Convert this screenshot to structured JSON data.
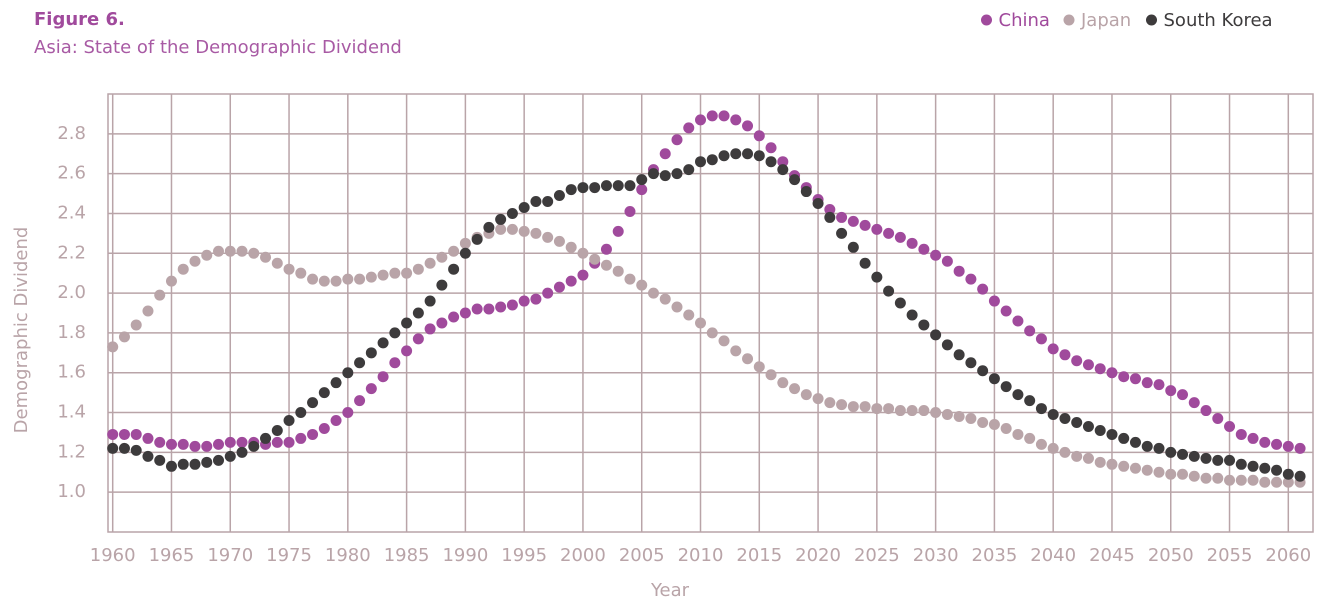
{
  "chart_data": {
    "type": "scatter",
    "title": "Figure 6.",
    "subtitle": "Asia: State of the Demographic Dividend",
    "x_label": "Year",
    "y_label": "Demographic Dividend",
    "x": [
      1960,
      1961,
      1962,
      1963,
      1964,
      1965,
      1966,
      1967,
      1968,
      1969,
      1970,
      1971,
      1972,
      1973,
      1974,
      1975,
      1976,
      1977,
      1978,
      1979,
      1980,
      1981,
      1982,
      1983,
      1984,
      1985,
      1986,
      1987,
      1988,
      1989,
      1990,
      1991,
      1992,
      1993,
      1994,
      1995,
      1996,
      1997,
      1998,
      1999,
      2000,
      2001,
      2002,
      2003,
      2004,
      2005,
      2006,
      2007,
      2008,
      2009,
      2010,
      2011,
      2012,
      2013,
      2014,
      2015,
      2016,
      2017,
      2018,
      2019,
      2020,
      2021,
      2022,
      2023,
      2024,
      2025,
      2026,
      2027,
      2028,
      2029,
      2030,
      2031,
      2032,
      2033,
      2034,
      2035,
      2036,
      2037,
      2038,
      2039,
      2040,
      2041,
      2042,
      2043,
      2044,
      2045,
      2046,
      2047,
      2048,
      2049,
      2050,
      2051,
      2052,
      2053,
      2054,
      2055,
      2056,
      2057,
      2058,
      2059,
      2060,
      2061
    ],
    "series": [
      {
        "name": "China",
        "color": "#a04a9c",
        "values": [
          1.29,
          1.29,
          1.29,
          1.27,
          1.25,
          1.24,
          1.24,
          1.23,
          1.23,
          1.24,
          1.25,
          1.25,
          1.25,
          1.24,
          1.25,
          1.25,
          1.27,
          1.29,
          1.32,
          1.36,
          1.4,
          1.46,
          1.52,
          1.58,
          1.65,
          1.71,
          1.77,
          1.82,
          1.85,
          1.88,
          1.9,
          1.92,
          1.92,
          1.93,
          1.94,
          1.96,
          1.97,
          2.0,
          2.03,
          2.06,
          2.09,
          2.15,
          2.22,
          2.31,
          2.41,
          2.52,
          2.62,
          2.7,
          2.77,
          2.83,
          2.87,
          2.89,
          2.89,
          2.87,
          2.84,
          2.79,
          2.73,
          2.66,
          2.59,
          2.53,
          2.47,
          2.42,
          2.38,
          2.36,
          2.34,
          2.32,
          2.3,
          2.28,
          2.25,
          2.22,
          2.19,
          2.16,
          2.11,
          2.07,
          2.02,
          1.96,
          1.91,
          1.86,
          1.81,
          1.77,
          1.72,
          1.69,
          1.66,
          1.64,
          1.62,
          1.6,
          1.58,
          1.57,
          1.55,
          1.54,
          1.51,
          1.49,
          1.45,
          1.41,
          1.37,
          1.33,
          1.29,
          1.27,
          1.25,
          1.24,
          1.23,
          1.22
        ]
      },
      {
        "name": "Japan",
        "color": "#b9a4a8",
        "values": [
          1.73,
          1.78,
          1.84,
          1.91,
          1.99,
          2.06,
          2.12,
          2.16,
          2.19,
          2.21,
          2.21,
          2.21,
          2.2,
          2.18,
          2.15,
          2.12,
          2.1,
          2.07,
          2.06,
          2.06,
          2.07,
          2.07,
          2.08,
          2.09,
          2.1,
          2.1,
          2.12,
          2.15,
          2.18,
          2.21,
          2.25,
          2.28,
          2.3,
          2.32,
          2.32,
          2.31,
          2.3,
          2.28,
          2.26,
          2.23,
          2.2,
          2.17,
          2.14,
          2.11,
          2.07,
          2.04,
          2.0,
          1.97,
          1.93,
          1.89,
          1.85,
          1.8,
          1.76,
          1.71,
          1.67,
          1.63,
          1.59,
          1.55,
          1.52,
          1.49,
          1.47,
          1.45,
          1.44,
          1.43,
          1.43,
          1.42,
          1.42,
          1.41,
          1.41,
          1.41,
          1.4,
          1.39,
          1.38,
          1.37,
          1.35,
          1.34,
          1.32,
          1.29,
          1.27,
          1.24,
          1.22,
          1.2,
          1.18,
          1.17,
          1.15,
          1.14,
          1.13,
          1.12,
          1.11,
          1.1,
          1.09,
          1.09,
          1.08,
          1.07,
          1.07,
          1.06,
          1.06,
          1.06,
          1.05,
          1.05,
          1.05,
          1.05
        ]
      },
      {
        "name": "South Korea",
        "color": "#3d3b3c",
        "values": [
          1.22,
          1.22,
          1.21,
          1.18,
          1.16,
          1.13,
          1.14,
          1.14,
          1.15,
          1.16,
          1.18,
          1.2,
          1.23,
          1.27,
          1.31,
          1.36,
          1.4,
          1.45,
          1.5,
          1.55,
          1.6,
          1.65,
          1.7,
          1.75,
          1.8,
          1.85,
          1.9,
          1.96,
          2.04,
          2.12,
          2.2,
          2.27,
          2.33,
          2.37,
          2.4,
          2.43,
          2.46,
          2.46,
          2.49,
          2.52,
          2.53,
          2.53,
          2.54,
          2.54,
          2.54,
          2.57,
          2.6,
          2.59,
          2.6,
          2.62,
          2.66,
          2.67,
          2.69,
          2.7,
          2.7,
          2.69,
          2.66,
          2.62,
          2.57,
          2.51,
          2.45,
          2.38,
          2.3,
          2.23,
          2.15,
          2.08,
          2.01,
          1.95,
          1.89,
          1.84,
          1.79,
          1.74,
          1.69,
          1.65,
          1.61,
          1.57,
          1.53,
          1.49,
          1.46,
          1.42,
          1.39,
          1.37,
          1.35,
          1.33,
          1.31,
          1.29,
          1.27,
          1.25,
          1.23,
          1.22,
          1.2,
          1.19,
          1.18,
          1.17,
          1.16,
          1.16,
          1.14,
          1.13,
          1.12,
          1.11,
          1.09,
          1.08
        ]
      }
    ],
    "xlim": [
      1959.6,
      2062.1
    ],
    "xticks": [
      1960,
      1965,
      1970,
      1975,
      1980,
      1985,
      1990,
      1995,
      2000,
      2005,
      2010,
      2015,
      2020,
      2025,
      2030,
      2035,
      2040,
      2045,
      2050,
      2055,
      2060
    ],
    "ylim": [
      0.8,
      3.0
    ],
    "yticks": [
      {
        "value": 1.0,
        "label": "1.0"
      },
      1.2,
      1.4,
      1.6,
      1.8,
      {
        "value": 2.0,
        "label": "2.0"
      },
      2.2,
      2.4,
      2.6,
      2.8
    ],
    "grid": true,
    "legend": "top-right"
  }
}
